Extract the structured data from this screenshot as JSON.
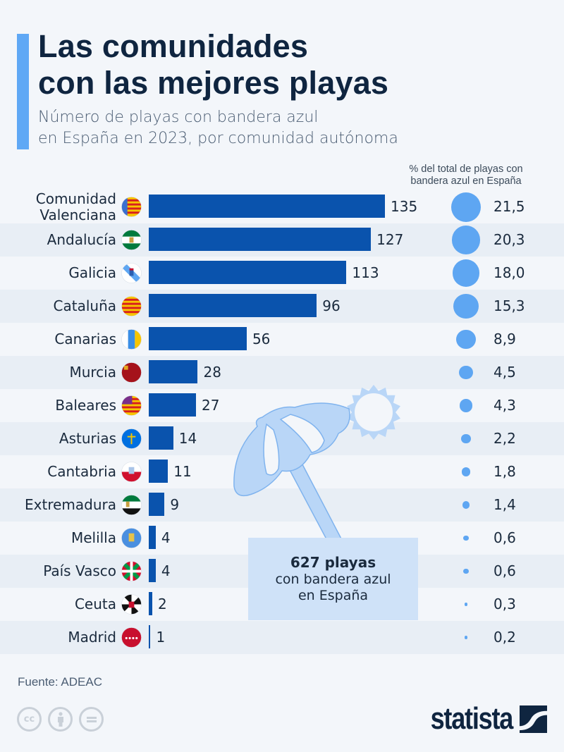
{
  "header": {
    "title_line1": "Las comunidades",
    "title_line2": "con las mejores playas",
    "subtitle_line1": "Número de playas con bandera azul",
    "subtitle_line2": "en España en 2023, por comunidad autónoma",
    "accent_color": "#5fa8f5"
  },
  "pct_header": {
    "line1": "% del total de playas con",
    "line2": "bandera azul en España"
  },
  "callout": {
    "big": "627 playas",
    "line2": "con bandera azul",
    "line3": "en España"
  },
  "footer": {
    "source": "Fuente: ADEAC",
    "license_icons": [
      "cc-icon",
      "by-attribution-icon",
      "no-derivatives-icon"
    ],
    "logo_text": "statista"
  },
  "chart_data": {
    "type": "bar",
    "orientation": "horizontal",
    "title": "Las comunidades con las mejores playas",
    "subtitle": "Número de playas con bandera azul en España en 2023, por comunidad autónoma",
    "xlabel": "",
    "ylabel": "",
    "xlim": [
      0,
      135
    ],
    "grid": false,
    "bar_color": "#0a53ad",
    "bubble_color": "#5ea6f2",
    "total": 627,
    "categories": [
      [
        "Comunidad",
        "Valenciana"
      ],
      "Andalucía",
      "Galicia",
      "Cataluña",
      "Canarias",
      "Murcia",
      "Baleares",
      "Asturias",
      "Cantabria",
      "Extremadura",
      "Melilla",
      "País Vasco",
      "Ceuta",
      "Madrid"
    ],
    "flags": [
      "flag-valencia",
      "flag-andalucia",
      "flag-galicia",
      "flag-cataluna",
      "flag-canarias",
      "flag-murcia",
      "flag-baleares",
      "flag-asturias",
      "flag-cantabria",
      "flag-extremadura",
      "flag-melilla",
      "flag-pais-vasco",
      "flag-ceuta",
      "flag-madrid"
    ],
    "series": [
      {
        "name": "Número de playas con bandera azul",
        "values": [
          135,
          127,
          113,
          96,
          56,
          28,
          27,
          14,
          11,
          9,
          4,
          4,
          2,
          1
        ],
        "labels": [
          "135",
          "127",
          "113",
          "96",
          "56",
          "28",
          "27",
          "14",
          "11",
          "9",
          "4",
          "4",
          "2",
          "1"
        ]
      },
      {
        "name": "% del total de playas con bandera azul en España",
        "values": [
          21.5,
          20.3,
          18.0,
          15.3,
          8.9,
          4.5,
          4.3,
          2.2,
          1.8,
          1.4,
          0.6,
          0.6,
          0.3,
          0.2
        ],
        "labels": [
          "21,5",
          "20,3",
          "18,0",
          "15,3",
          "8,9",
          "4,5",
          "4,3",
          "2,2",
          "1,8",
          "1,4",
          "0,6",
          "0,6",
          "0,3",
          "0,2"
        ]
      }
    ]
  }
}
